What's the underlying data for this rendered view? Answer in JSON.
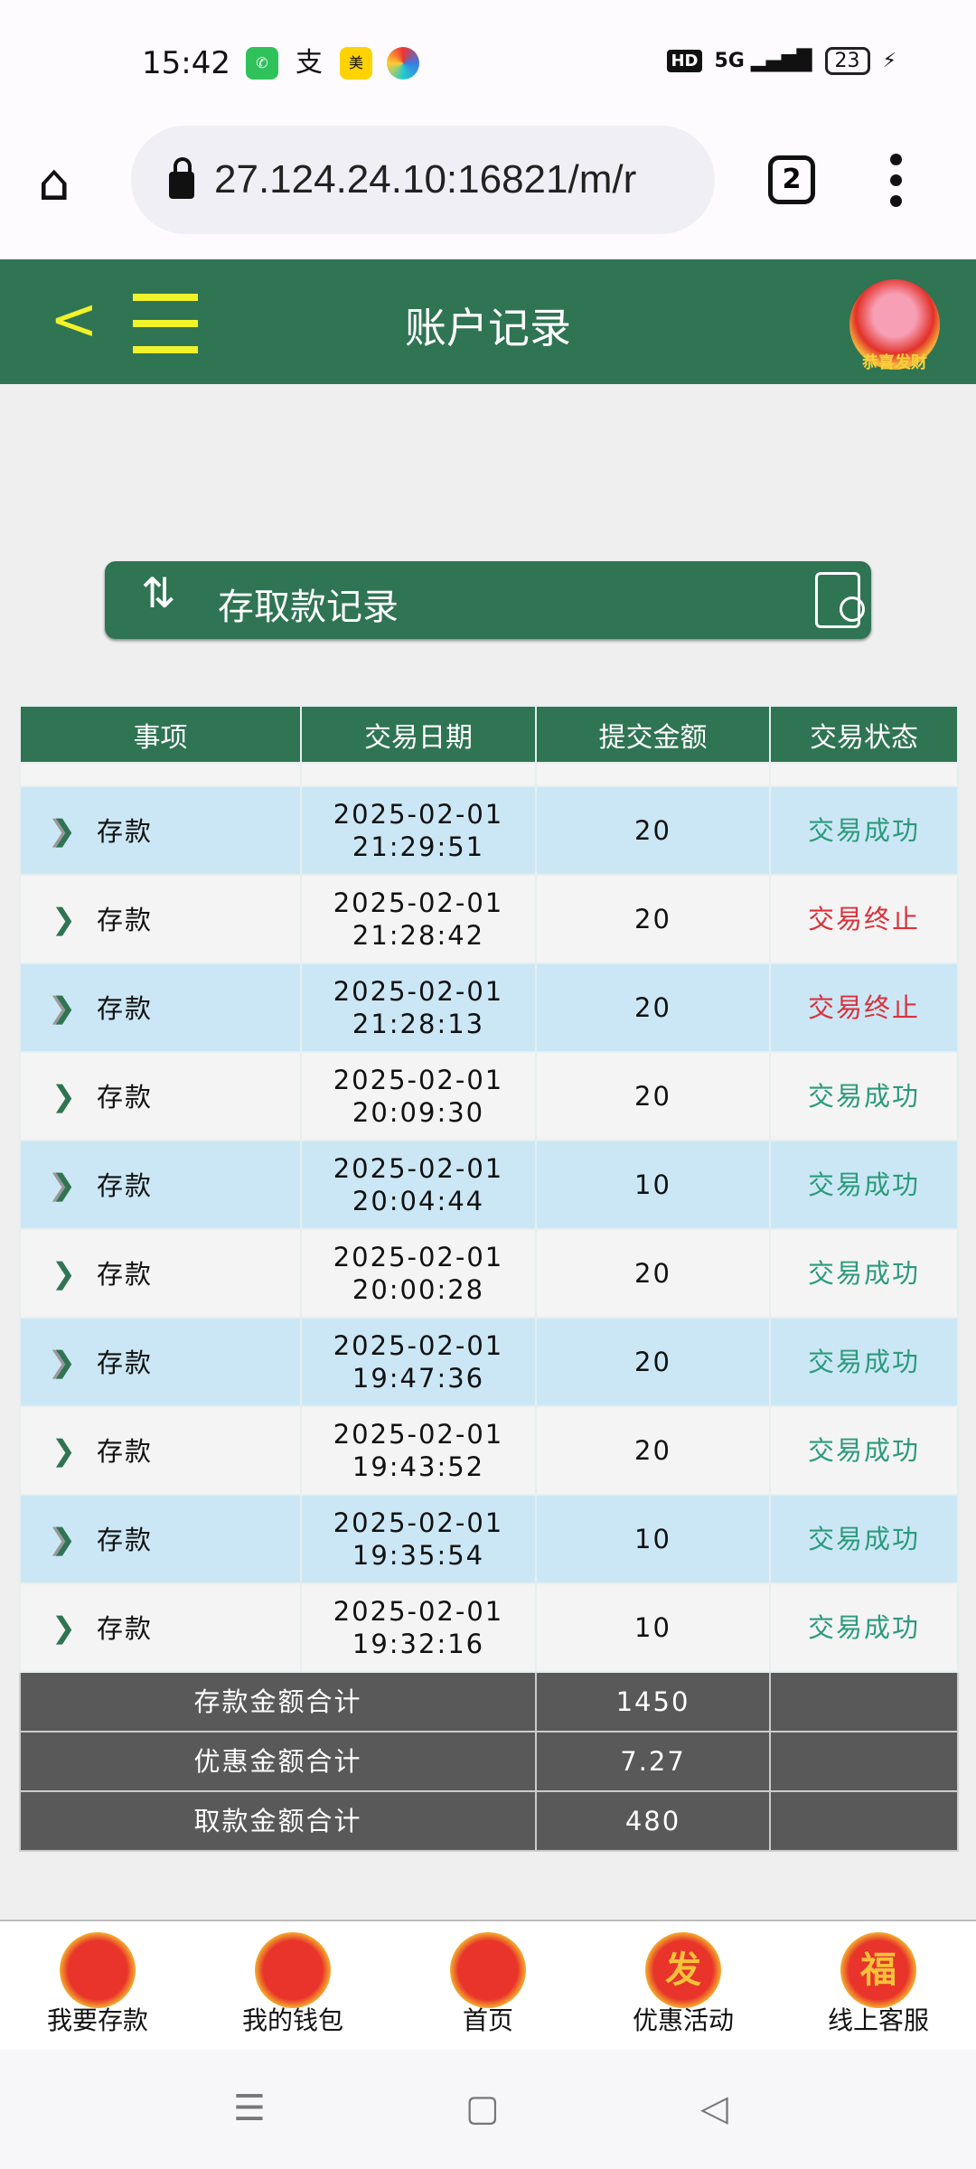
{
  "status_bar": {
    "time": "15:42",
    "hd": "HD",
    "network": "5G",
    "battery": "23"
  },
  "browser": {
    "url": "27.124.24.10:16821/m/r",
    "tab_count": "2"
  },
  "header": {
    "title": "账户记录",
    "mascot_text": "恭喜发财"
  },
  "section": {
    "title": "存取款记录"
  },
  "table": {
    "columns": [
      "事项",
      "交易日期",
      "提交金额",
      "交易状态"
    ],
    "rows": [
      {
        "item": "存款",
        "date": "2025-02-01",
        "time": "21:29:51",
        "amount": "20",
        "status": "交易成功",
        "ok": true
      },
      {
        "item": "存款",
        "date": "2025-02-01",
        "time": "21:28:42",
        "amount": "20",
        "status": "交易终止",
        "ok": false
      },
      {
        "item": "存款",
        "date": "2025-02-01",
        "time": "21:28:13",
        "amount": "20",
        "status": "交易终止",
        "ok": false
      },
      {
        "item": "存款",
        "date": "2025-02-01",
        "time": "20:09:30",
        "amount": "20",
        "status": "交易成功",
        "ok": true
      },
      {
        "item": "存款",
        "date": "2025-02-01",
        "time": "20:04:44",
        "amount": "10",
        "status": "交易成功",
        "ok": true
      },
      {
        "item": "存款",
        "date": "2025-02-01",
        "time": "20:00:28",
        "amount": "20",
        "status": "交易成功",
        "ok": true
      },
      {
        "item": "存款",
        "date": "2025-02-01",
        "time": "19:47:36",
        "amount": "20",
        "status": "交易成功",
        "ok": true
      },
      {
        "item": "存款",
        "date": "2025-02-01",
        "time": "19:43:52",
        "amount": "20",
        "status": "交易成功",
        "ok": true
      },
      {
        "item": "存款",
        "date": "2025-02-01",
        "time": "19:35:54",
        "amount": "10",
        "status": "交易成功",
        "ok": true
      },
      {
        "item": "存款",
        "date": "2025-02-01",
        "time": "19:32:16",
        "amount": "10",
        "status": "交易成功",
        "ok": true
      }
    ],
    "summary": [
      {
        "label": "存款金额合计",
        "value": "1450"
      },
      {
        "label": "优惠金额合计",
        "value": "7.27"
      },
      {
        "label": "取款金额合计",
        "value": "480"
      }
    ]
  },
  "bottom_nav": [
    {
      "label": "我要存款",
      "icon": "snake-mascot-icon",
      "glyph": ""
    },
    {
      "label": "我的钱包",
      "icon": "wallet-mascot-icon",
      "glyph": ""
    },
    {
      "label": "首页",
      "icon": "home-mascot-icon",
      "glyph": ""
    },
    {
      "label": "优惠活动",
      "icon": "fa-character-icon",
      "glyph": "发"
    },
    {
      "label": "线上客服",
      "icon": "fu-character-icon",
      "glyph": "福"
    }
  ],
  "colors": {
    "primary": "#2f7453",
    "accent": "#f2f22a",
    "success": "#2c9a7c",
    "fail": "#d9323c",
    "row_alt": "#cbe7f5",
    "summary": "#595959"
  }
}
